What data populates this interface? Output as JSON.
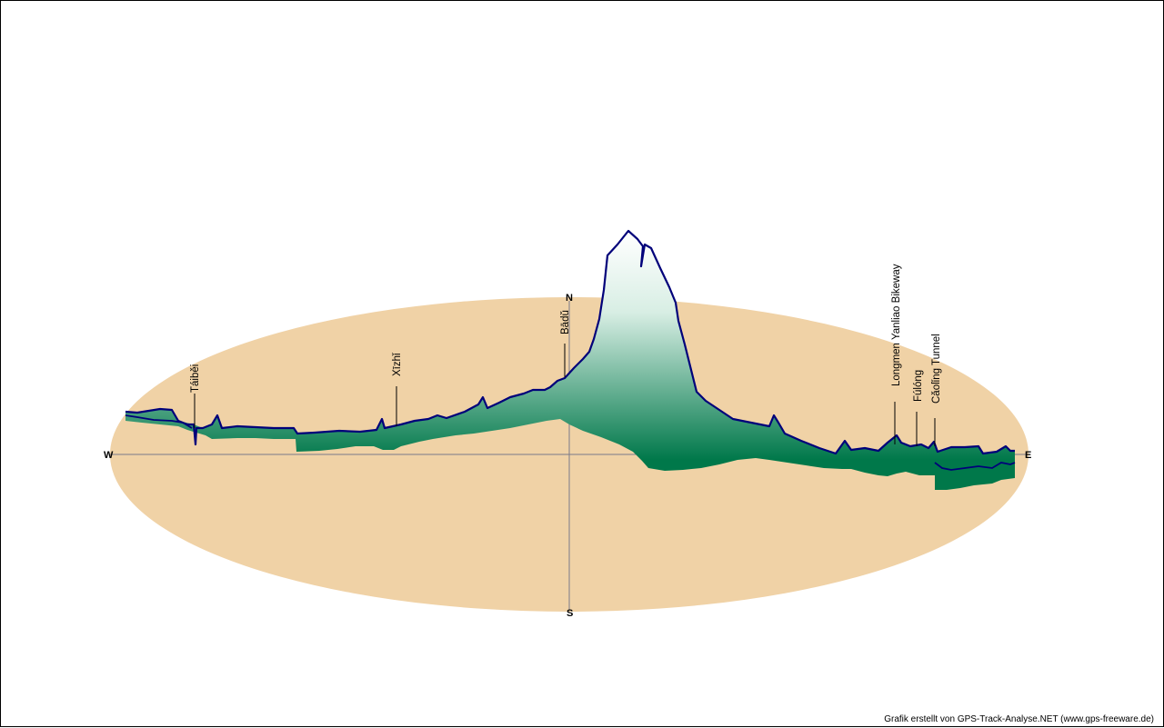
{
  "colors": {
    "ground": "#F0D2A6",
    "track_line": "#00007A",
    "fill_dark": "#00784A",
    "fill_light": "#FFFFFF",
    "axis": "#7A7A8A"
  },
  "compass": {
    "north": "N",
    "south": "S",
    "west": "W",
    "east": "E"
  },
  "places": [
    {
      "name": "Táiběi"
    },
    {
      "name": "Xīzhǐ"
    },
    {
      "name": "Bādǔ"
    },
    {
      "name": "Longmen Yanliao Bikeway"
    },
    {
      "name": "Fúlóng"
    },
    {
      "name": "Cǎolǐng Tunnel"
    }
  ],
  "credit": "Grafik erstellt von GPS-Track-Analyse.NET (www.gps-freeware.de)"
}
